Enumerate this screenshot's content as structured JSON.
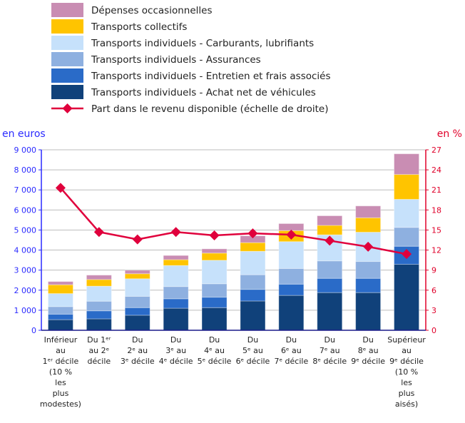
{
  "chart_data": {
    "type": "bar",
    "stacked": true,
    "title": "",
    "ylabel": "en euros",
    "y2label": "en %",
    "ylim": [
      0,
      9000
    ],
    "y2lim": [
      0,
      27
    ],
    "yticks": [
      "0",
      "1 000",
      "2 000",
      "3 000",
      "4 000",
      "5 000",
      "6 000",
      "7 000",
      "8 000",
      "9 000"
    ],
    "y2ticks": [
      "0",
      "3",
      "6",
      "9",
      "12",
      "15",
      "18",
      "21",
      "24",
      "27"
    ],
    "grid": true,
    "legend_position": "top",
    "categories": [
      [
        "Inférieur",
        "au",
        "1ᵉʳ décile",
        "(10 %",
        "les",
        "plus",
        "modestes)"
      ],
      [
        "Du 1ᵉʳ",
        "au 2ᵉ",
        "décile"
      ],
      [
        "Du",
        "2ᵉ au",
        "3ᵉ décile"
      ],
      [
        "Du",
        "3ᵉ au",
        "4ᵉ décile"
      ],
      [
        "Du",
        "4ᵉ au",
        "5ᵉ décile"
      ],
      [
        "Du",
        "5ᵉ au",
        "6ᵉ décile"
      ],
      [
        "Du",
        "6ᵉ au",
        "7ᵉ décile"
      ],
      [
        "Du",
        "7ᵉ au",
        "8ᵉ décile"
      ],
      [
        "Du",
        "8ᵉ au",
        "9ᵉ décile"
      ],
      [
        "Supérieur",
        "au",
        "9ᵉ décile",
        "(10 %",
        "les",
        "plus",
        "aisés)"
      ]
    ],
    "series": [
      {
        "name": "Transports individuels - Achat net de véhicules",
        "color": "#10417a",
        "values": [
          530,
          570,
          750,
          1100,
          1130,
          1460,
          1740,
          1880,
          1880,
          3290
        ]
      },
      {
        "name": "Transports individuels - Entretien et frais associés",
        "color": "#2a6bc8",
        "values": [
          270,
          400,
          380,
          470,
          520,
          580,
          560,
          710,
          710,
          900
        ]
      },
      {
        "name": "Transports individuels - Assurances",
        "color": "#8eb0e0",
        "values": [
          380,
          480,
          560,
          610,
          670,
          730,
          780,
          870,
          840,
          940
        ]
      },
      {
        "name": "Transports individuels - Carburants, lubrifiants",
        "color": "#c6e1fb",
        "values": [
          650,
          750,
          880,
          1050,
          1170,
          1170,
          1340,
          1300,
          1460,
          1400
        ]
      },
      {
        "name": "Transports collectifs",
        "color": "#ffc400",
        "values": [
          440,
          330,
          250,
          290,
          360,
          430,
          550,
          470,
          720,
          1240
        ]
      },
      {
        "name": "Dépenses occasionnelles",
        "color": "#c98db3",
        "values": [
          160,
          220,
          170,
          210,
          210,
          340,
          350,
          480,
          590,
          1030
        ]
      }
    ],
    "line_series": {
      "name": "Part dans le revenu disponible (échelle de droite)",
      "color": "#e0003c",
      "axis": "right",
      "values": [
        21.3,
        14.7,
        13.6,
        14.7,
        14.2,
        14.5,
        14.3,
        13.4,
        12.5,
        11.4
      ]
    },
    "legend_order": [
      "Dépenses occasionnelles",
      "Transports collectifs",
      "Transports individuels - Carburants, lubrifiants",
      "Transports individuels - Assurances",
      "Transports individuels - Entretien et frais associés",
      "Transports individuels - Achat net de véhicules",
      "Part dans le revenu disponible (échelle de droite)"
    ]
  }
}
